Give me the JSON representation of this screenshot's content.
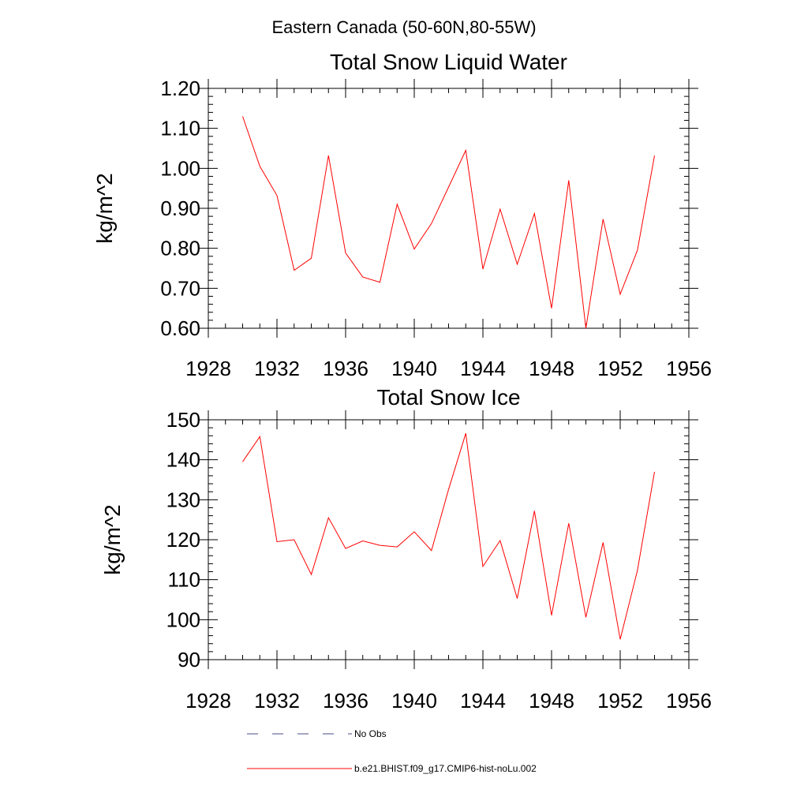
{
  "figure": {
    "title": "Eastern Canada (50-60N,80-55W)"
  },
  "chart_data": [
    {
      "type": "line",
      "title": "Total Snow Liquid Water",
      "xlabel": "",
      "ylabel": "kg/m^2",
      "xlim": [
        1928,
        1956
      ],
      "ylim": [
        0.6,
        1.2
      ],
      "xticks": [
        1928,
        1932,
        1936,
        1940,
        1944,
        1948,
        1952,
        1956
      ],
      "yticks": [
        0.6,
        0.7,
        0.8,
        0.9,
        1.0,
        1.1,
        1.2
      ],
      "ytick_labels": [
        "0.60",
        "0.70",
        "0.80",
        "0.90",
        "1.00",
        "1.10",
        "1.20"
      ],
      "grid": false,
      "series": [
        {
          "name": "b.e21.BHIST.f09_g17.CMIP6-hist-noLu.002",
          "color": "#ff0000",
          "x": [
            1930,
            1931,
            1932,
            1933,
            1934,
            1935,
            1936,
            1937,
            1938,
            1939,
            1940,
            1941,
            1942,
            1943,
            1944,
            1945,
            1946,
            1947,
            1948,
            1949,
            1950,
            1951,
            1952,
            1953,
            1954
          ],
          "values": [
            1.13,
            1.005,
            0.932,
            0.745,
            0.775,
            1.032,
            0.788,
            0.728,
            0.715,
            0.91,
            0.798,
            0.862,
            0.953,
            1.045,
            0.748,
            0.898,
            0.76,
            0.887,
            0.65,
            0.97,
            0.6,
            0.873,
            0.685,
            0.795,
            1.032
          ]
        }
      ]
    },
    {
      "type": "line",
      "title": "Total Snow Ice",
      "xlabel": "",
      "ylabel": "kg/m^2",
      "xlim": [
        1928,
        1956
      ],
      "ylim": [
        90,
        150
      ],
      "xticks": [
        1928,
        1932,
        1936,
        1940,
        1944,
        1948,
        1952,
        1956
      ],
      "yticks": [
        90,
        100,
        110,
        120,
        130,
        140,
        150
      ],
      "ytick_labels": [
        "90",
        "100",
        "110",
        "120",
        "130",
        "140",
        "150"
      ],
      "grid": false,
      "series": [
        {
          "name": "b.e21.BHIST.f09_g17.CMIP6-hist-noLu.002",
          "color": "#ff0000",
          "x": [
            1930,
            1931,
            1932,
            1933,
            1934,
            1935,
            1936,
            1937,
            1938,
            1939,
            1940,
            1941,
            1942,
            1943,
            1944,
            1945,
            1946,
            1947,
            1948,
            1949,
            1950,
            1951,
            1952,
            1953,
            1954
          ],
          "values": [
            139.5,
            145.8,
            119.5,
            120.0,
            111.3,
            125.5,
            117.8,
            119.7,
            118.6,
            118.2,
            122.0,
            117.3,
            132.6,
            146.6,
            113.3,
            119.8,
            105.3,
            127.2,
            101.1,
            124.1,
            100.6,
            119.3,
            95.1,
            112.3,
            137.0
          ]
        }
      ]
    }
  ],
  "legend": [
    {
      "label": "No Obs",
      "color": "#4a4a8a",
      "style": "dashed"
    },
    {
      "label": "b.e21.BHIST.f09_g17.CMIP6-hist-noLu.002",
      "color": "#ff0000",
      "style": "solid"
    }
  ]
}
